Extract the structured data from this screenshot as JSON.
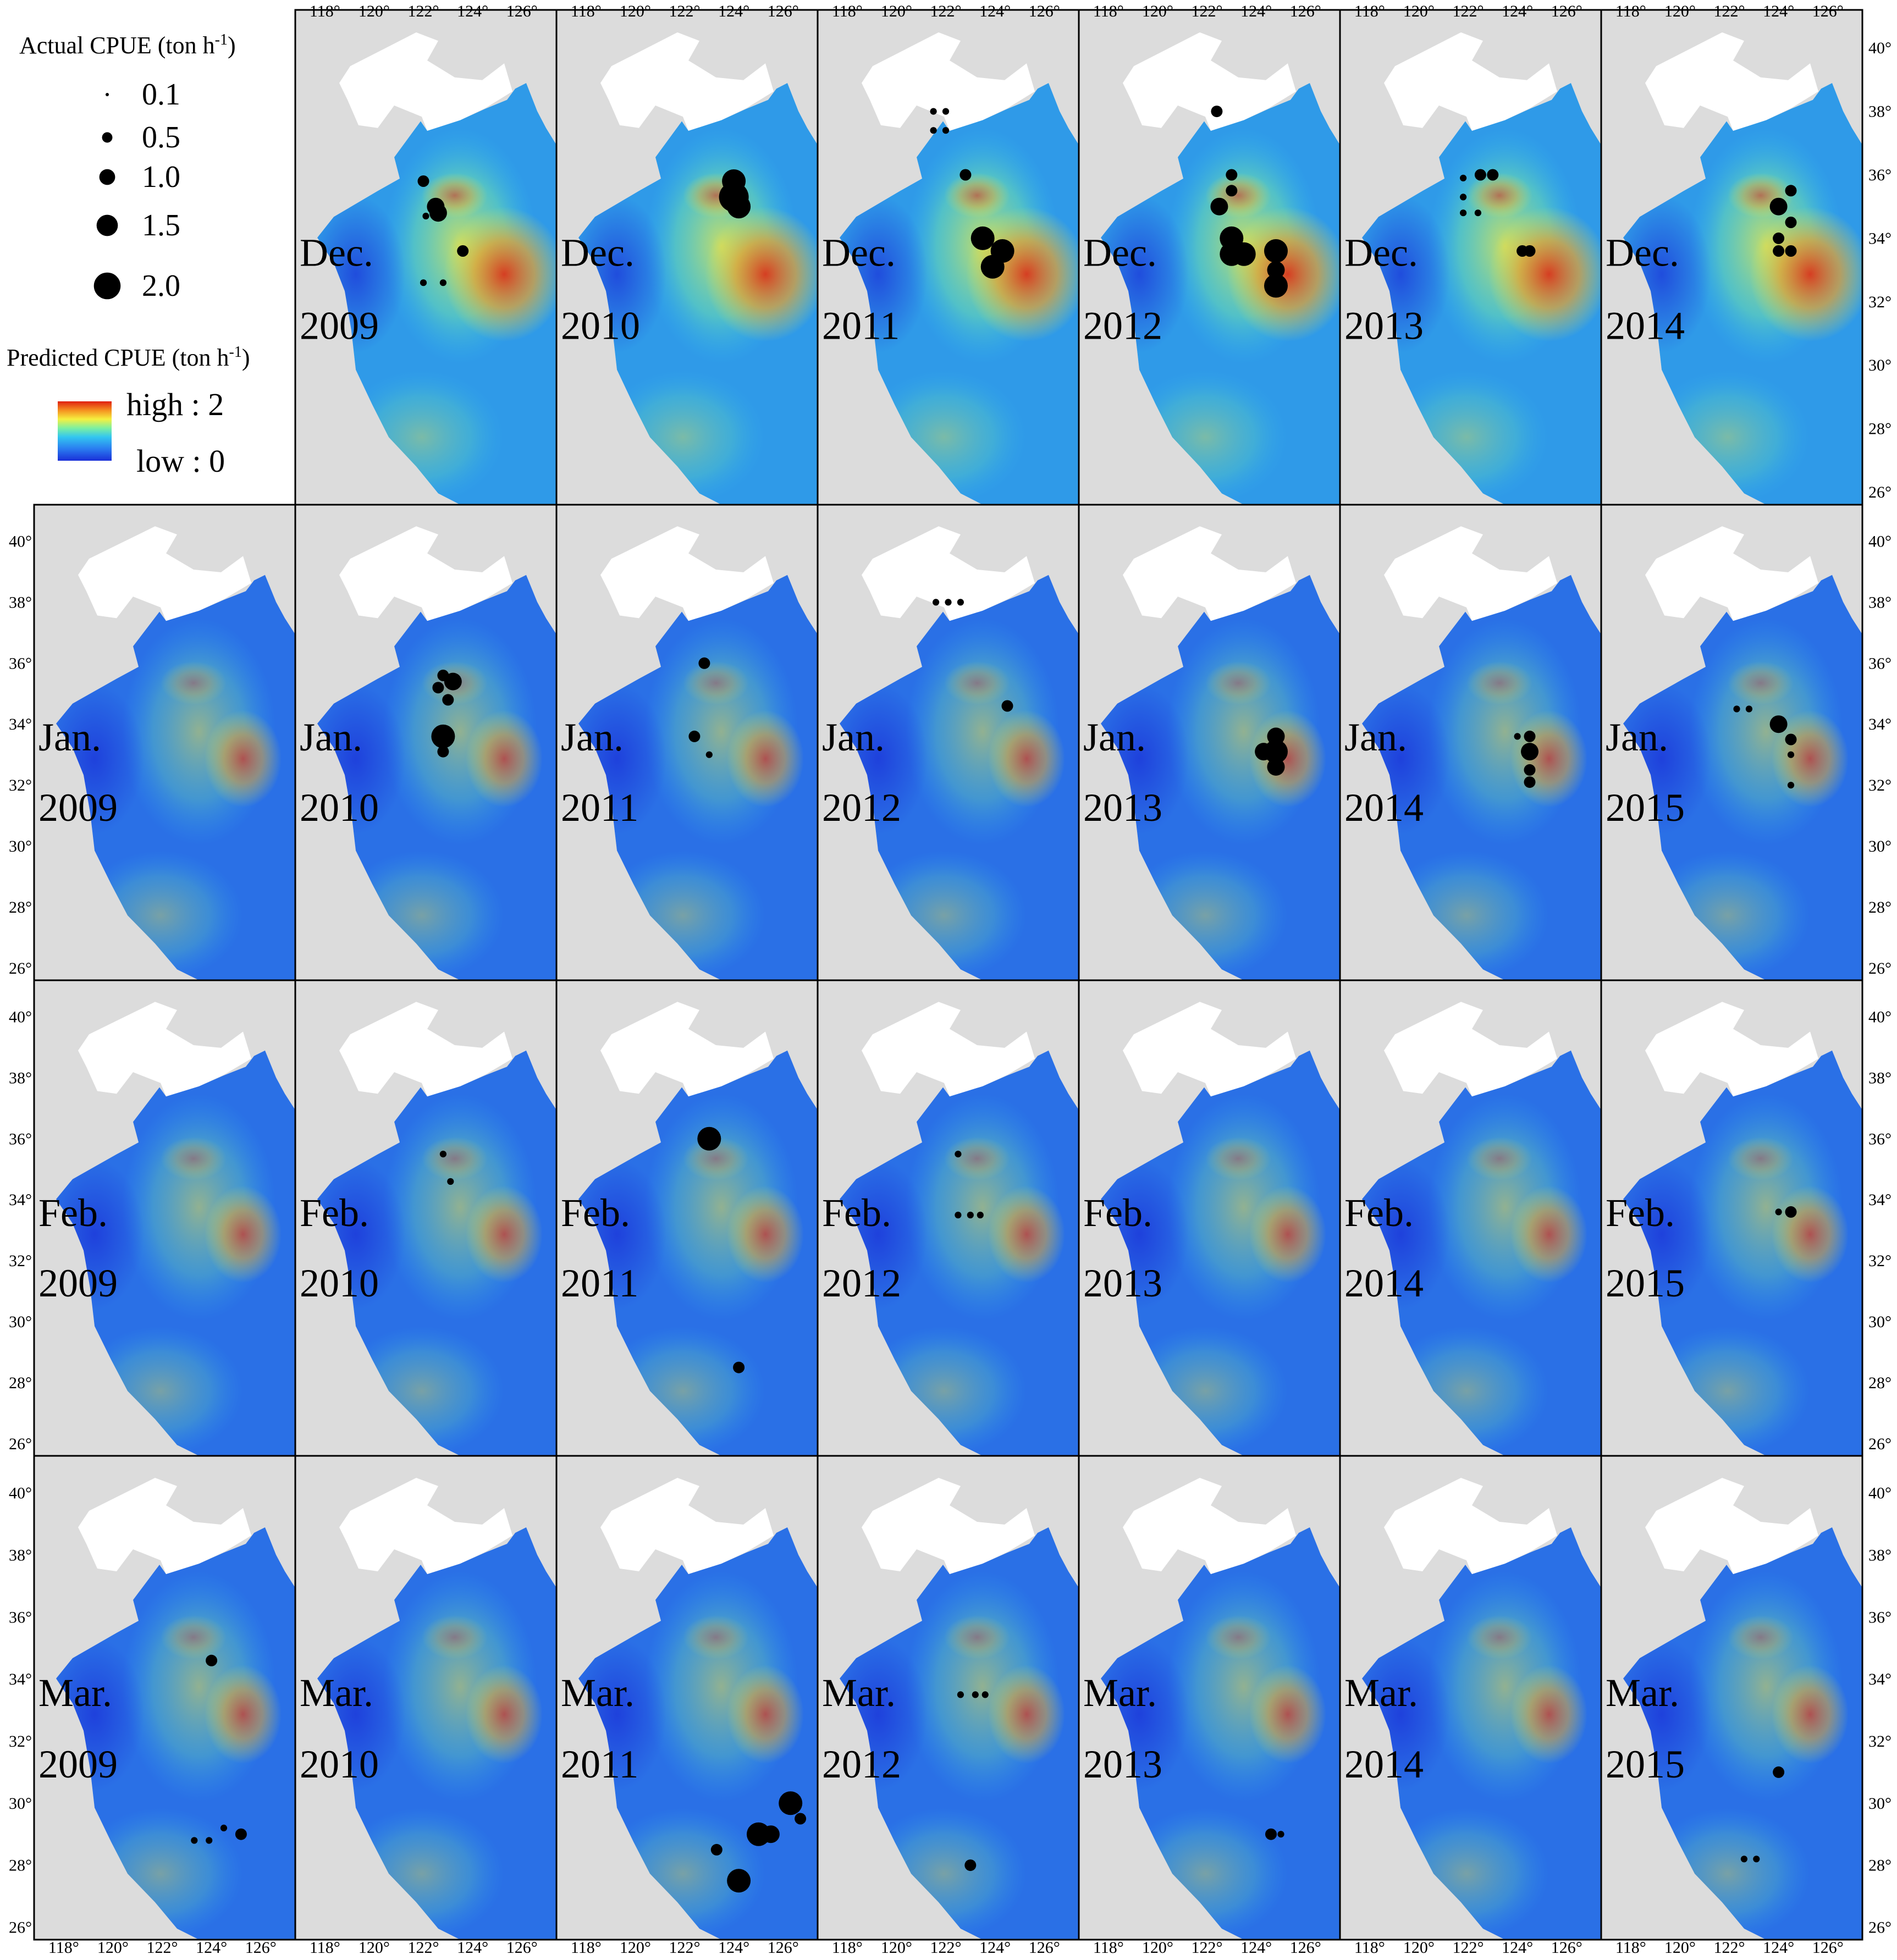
{
  "legend": {
    "actual_title_main": "Actual CPUE (ton h",
    "actual_title_exp": "-1",
    "actual_title_end": ")",
    "actual_sizes": [
      "0.1",
      "0.5",
      "1.0",
      "1.5",
      "2.0"
    ],
    "actual_size_values": [
      0.1,
      0.5,
      1.0,
      1.5,
      2.0
    ],
    "predicted_title_main": "Predicted CPUE (ton h",
    "predicted_title_exp": "-1",
    "predicted_title_end": ")",
    "high_label": "high : 2",
    "low_label": "low : 0",
    "colormap": [
      "#1a2fd8",
      "#2a7cf0",
      "#33c6f0",
      "#7df0a0",
      "#f5f040",
      "#f59020",
      "#e02010"
    ]
  },
  "axes": {
    "lon_ticks": [
      "118°",
      "120°",
      "122°",
      "124°",
      "126°"
    ],
    "lat_ticks": [
      "40°",
      "38°",
      "36°",
      "34°",
      "32°",
      "30°",
      "28°",
      "26°"
    ]
  },
  "rows": [
    {
      "month": "Dec.",
      "panels": [
        {
          "year": "2009"
        },
        {
          "year": "2010"
        },
        {
          "year": "2011"
        },
        {
          "year": "2012"
        },
        {
          "year": "2013"
        },
        {
          "year": "2014"
        }
      ]
    },
    {
      "month": "Jan.",
      "panels": [
        {
          "year": "2009"
        },
        {
          "year": "2010"
        },
        {
          "year": "2011"
        },
        {
          "year": "2012"
        },
        {
          "year": "2013"
        },
        {
          "year": "2014"
        },
        {
          "year": "2015"
        }
      ]
    },
    {
      "month": "Feb.",
      "panels": [
        {
          "year": "2009"
        },
        {
          "year": "2010"
        },
        {
          "year": "2011"
        },
        {
          "year": "2012"
        },
        {
          "year": "2013"
        },
        {
          "year": "2014"
        },
        {
          "year": "2015"
        }
      ]
    },
    {
      "month": "Mar.",
      "panels": [
        {
          "year": "2009"
        },
        {
          "year": "2010"
        },
        {
          "year": "2011"
        },
        {
          "year": "2012"
        },
        {
          "year": "2013"
        },
        {
          "year": "2014"
        },
        {
          "year": "2015"
        }
      ]
    }
  ],
  "actual_cpue_points": [
    {
      "month": "Dec.",
      "year": "2009",
      "pts": [
        [
          122.0,
          35.8,
          0.5
        ],
        [
          122.5,
          35.0,
          1.0
        ],
        [
          122.6,
          34.8,
          1.0
        ],
        [
          122.1,
          34.7,
          0.1
        ],
        [
          123.6,
          33.6,
          0.5
        ],
        [
          122.0,
          32.6,
          0.1
        ],
        [
          122.8,
          32.6,
          0.1
        ]
      ]
    },
    {
      "month": "Dec.",
      "year": "2010",
      "pts": [
        [
          124.0,
          35.8,
          1.5
        ],
        [
          124.0,
          35.3,
          2.0
        ],
        [
          124.2,
          35.0,
          1.5
        ]
      ]
    },
    {
      "month": "Dec.",
      "year": "2011",
      "pts": [
        [
          121.5,
          38.0,
          0.1
        ],
        [
          122.0,
          38.0,
          0.1
        ],
        [
          121.5,
          37.4,
          0.1
        ],
        [
          122.0,
          37.4,
          0.1
        ],
        [
          122.8,
          36.0,
          0.5
        ],
        [
          123.5,
          34.0,
          1.5
        ],
        [
          124.3,
          33.6,
          1.5
        ],
        [
          123.9,
          33.1,
          1.5
        ]
      ]
    },
    {
      "month": "Dec.",
      "year": "2012",
      "pts": [
        [
          122.4,
          38.0,
          0.5
        ],
        [
          123.0,
          36.0,
          0.5
        ],
        [
          123.0,
          35.5,
          0.5
        ],
        [
          122.5,
          35.0,
          1.0
        ],
        [
          123.0,
          34.0,
          1.5
        ],
        [
          123.0,
          33.5,
          1.5
        ],
        [
          123.5,
          33.5,
          1.5
        ],
        [
          124.8,
          33.6,
          1.5
        ],
        [
          124.8,
          33.0,
          1.0
        ],
        [
          124.8,
          32.5,
          1.5
        ]
      ]
    },
    {
      "month": "Dec.",
      "year": "2013",
      "pts": [
        [
          121.8,
          35.9,
          0.1
        ],
        [
          121.8,
          35.3,
          0.1
        ],
        [
          121.8,
          34.8,
          0.1
        ],
        [
          122.4,
          34.8,
          0.1
        ],
        [
          122.5,
          36.0,
          0.5
        ],
        [
          123.0,
          36.0,
          0.5
        ],
        [
          124.2,
          33.6,
          0.5
        ],
        [
          124.5,
          33.6,
          0.5
        ]
      ]
    },
    {
      "month": "Dec.",
      "year": "2014",
      "pts": [
        [
          124.0,
          35.0,
          1.0
        ],
        [
          124.5,
          35.5,
          0.5
        ],
        [
          124.5,
          34.5,
          0.5
        ],
        [
          124.0,
          34.0,
          0.5
        ],
        [
          124.0,
          33.6,
          0.5
        ],
        [
          124.5,
          33.6,
          0.5
        ]
      ]
    },
    {
      "month": "Jan.",
      "year": "2010",
      "pts": [
        [
          122.8,
          35.6,
          0.5
        ],
        [
          123.2,
          35.4,
          1.0
        ],
        [
          122.6,
          35.2,
          0.5
        ],
        [
          123.0,
          34.8,
          0.5
        ],
        [
          122.8,
          33.6,
          1.5
        ],
        [
          122.8,
          33.1,
          0.5
        ]
      ]
    },
    {
      "month": "Jan.",
      "year": "2011",
      "pts": [
        [
          122.8,
          36.0,
          0.5
        ],
        [
          122.4,
          33.6,
          0.5
        ],
        [
          123.0,
          33.0,
          0.1
        ]
      ]
    },
    {
      "month": "Jan.",
      "year": "2012",
      "pts": [
        [
          121.6,
          38.0,
          0.1
        ],
        [
          122.1,
          38.0,
          0.1
        ],
        [
          122.6,
          38.0,
          0.1
        ],
        [
          124.5,
          34.6,
          0.5
        ]
      ]
    },
    {
      "month": "Jan.",
      "year": "2013",
      "pts": [
        [
          124.3,
          33.1,
          1.0
        ],
        [
          124.8,
          33.1,
          1.5
        ],
        [
          124.8,
          32.6,
          1.0
        ],
        [
          124.8,
          33.6,
          1.0
        ]
      ]
    },
    {
      "month": "Jan.",
      "year": "2014",
      "pts": [
        [
          124.0,
          33.6,
          0.1
        ],
        [
          124.5,
          33.6,
          0.5
        ],
        [
          124.5,
          33.1,
          1.0
        ],
        [
          124.5,
          32.5,
          0.5
        ],
        [
          124.5,
          32.1,
          0.5
        ]
      ]
    },
    {
      "month": "Jan.",
      "year": "2015",
      "pts": [
        [
          122.3,
          34.5,
          0.1
        ],
        [
          122.8,
          34.5,
          0.1
        ],
        [
          124.0,
          34.0,
          1.0
        ],
        [
          124.5,
          33.5,
          0.5
        ],
        [
          124.5,
          33.0,
          0.1
        ],
        [
          124.5,
          32.0,
          0.1
        ]
      ]
    },
    {
      "month": "Feb.",
      "year": "2010",
      "pts": [
        [
          122.8,
          35.5,
          0.1
        ],
        [
          123.1,
          34.6,
          0.1
        ]
      ]
    },
    {
      "month": "Feb.",
      "year": "2011",
      "pts": [
        [
          123.0,
          36.0,
          1.5
        ],
        [
          124.2,
          28.5,
          0.5
        ]
      ]
    },
    {
      "month": "Feb.",
      "year": "2012",
      "pts": [
        [
          122.5,
          35.5,
          0.1
        ],
        [
          122.5,
          33.5,
          0.1
        ],
        [
          123.0,
          33.5,
          0.1
        ],
        [
          123.4,
          33.5,
          0.1
        ]
      ]
    },
    {
      "month": "Feb.",
      "year": "2015",
      "pts": [
        [
          124.0,
          33.6,
          0.1
        ],
        [
          124.5,
          33.6,
          0.5
        ]
      ]
    },
    {
      "month": "Mar.",
      "year": "2009",
      "pts": [
        [
          124.0,
          34.6,
          0.5
        ],
        [
          123.3,
          28.8,
          0.1
        ],
        [
          123.9,
          28.8,
          0.1
        ],
        [
          124.5,
          29.2,
          0.1
        ],
        [
          125.2,
          29.0,
          0.5
        ]
      ]
    },
    {
      "month": "Mar.",
      "year": "2011",
      "pts": [
        [
          123.3,
          28.5,
          0.5
        ],
        [
          124.2,
          27.5,
          1.5
        ],
        [
          125.0,
          29.0,
          1.5
        ],
        [
          125.5,
          29.0,
          1.0
        ],
        [
          126.3,
          30.0,
          1.5
        ],
        [
          126.7,
          29.5,
          0.5
        ]
      ]
    },
    {
      "month": "Mar.",
      "year": "2012",
      "pts": [
        [
          122.6,
          33.5,
          0.1
        ],
        [
          123.2,
          33.5,
          0.1
        ],
        [
          123.6,
          33.5,
          0.1
        ],
        [
          123.0,
          28.0,
          0.5
        ]
      ]
    },
    {
      "month": "Mar.",
      "year": "2013",
      "pts": [
        [
          124.6,
          29.0,
          0.5
        ],
        [
          125.0,
          29.0,
          0.1
        ]
      ]
    },
    {
      "month": "Mar.",
      "year": "2015",
      "pts": [
        [
          124.0,
          31.0,
          0.5
        ],
        [
          122.6,
          28.2,
          0.1
        ],
        [
          123.1,
          28.2,
          0.1
        ]
      ]
    }
  ]
}
